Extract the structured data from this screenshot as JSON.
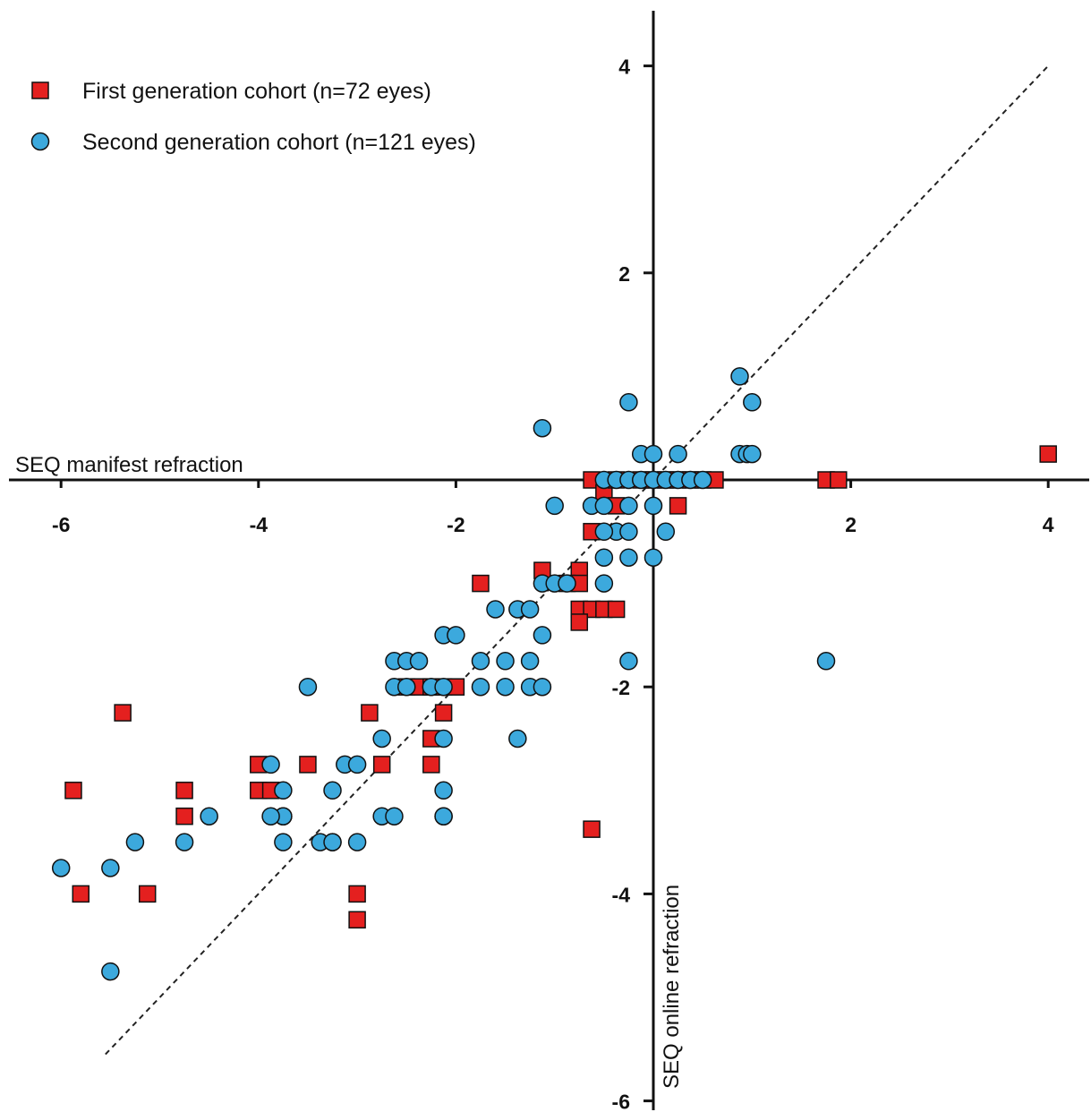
{
  "chart_data": {
    "type": "scatter",
    "title": "",
    "xlabel": "SEQ manifest refraction",
    "ylabel": "SEQ online refraction",
    "xlim": [
      -6.5,
      4.5
    ],
    "ylim": [
      -6.2,
      4.5
    ],
    "xticks": [
      -6,
      -4,
      -2,
      2,
      4
    ],
    "yticks": [
      -6,
      -4,
      -2,
      2,
      4
    ],
    "reference_line": {
      "style": "dashed",
      "x": [
        -5.55,
        4
      ],
      "y": [
        -5.55,
        4
      ]
    },
    "legend_position": "top-left",
    "grid": false,
    "colors": {
      "first": "#e4201f",
      "second": "#3ca9dd"
    },
    "series": [
      {
        "name": "First generation cohort (n=72 eyes)",
        "marker": "square",
        "x": [
          4.0,
          1.75,
          1.875,
          -0.125,
          0.0,
          0.125,
          0.25,
          0.375,
          0.5,
          0.625,
          -0.625,
          -0.5,
          -0.375,
          0.25,
          -0.375,
          -0.625,
          -1.125,
          -0.75,
          -0.875,
          -0.75,
          -1.75,
          -0.75,
          -0.625,
          -0.5,
          -0.75,
          -0.375,
          -2.5,
          -2.375,
          -2.25,
          -2.125,
          -2.0,
          -2.125,
          -2.25,
          -2.25,
          -0.625,
          -5.375,
          -5.875,
          -4.75,
          -4.75,
          -4.0,
          -4.0,
          -3.875,
          -3.5,
          -2.875,
          -2.75,
          -5.8,
          -5.125,
          -3.0,
          -3.0
        ],
        "y": [
          0.25,
          0.0,
          0.0,
          0.0,
          0.0,
          0.0,
          0.0,
          0.0,
          0.0,
          0.0,
          0.0,
          -0.125,
          0.0,
          -0.25,
          -0.25,
          -0.5,
          -0.875,
          -0.875,
          -1.0,
          -1.0,
          -1.0,
          -1.25,
          -1.25,
          -1.25,
          -1.375,
          -1.25,
          -2.0,
          -2.0,
          -2.0,
          -2.0,
          -2.0,
          -2.25,
          -2.5,
          -2.75,
          -3.375,
          -2.25,
          -3.0,
          -3.0,
          -3.25,
          -2.75,
          -3.0,
          -3.0,
          -2.75,
          -2.25,
          -2.75,
          -4.0,
          -4.0,
          -4.0,
          -4.25
        ]
      },
      {
        "name": "Second generation cohort (n=121 eyes)",
        "marker": "circle",
        "x": [
          0.875,
          1.0,
          -0.25,
          -1.125,
          -0.125,
          0.0,
          0.25,
          0.875,
          0.95,
          1.0,
          -0.5,
          -0.375,
          -0.25,
          -0.125,
          0.0,
          0.125,
          0.25,
          0.375,
          0.5,
          -1.0,
          -0.625,
          -0.5,
          -0.25,
          0.0,
          -0.375,
          -0.5,
          -0.25,
          0.125,
          -0.5,
          -0.25,
          0.0,
          -1.125,
          -1.0,
          -0.875,
          -0.5,
          -1.6,
          -1.375,
          -1.25,
          -2.125,
          -2.0,
          -1.125,
          -2.625,
          -2.5,
          -2.375,
          -1.75,
          -1.5,
          -1.25,
          -2.625,
          -2.5,
          -2.25,
          -2.125,
          -1.75,
          -1.5,
          -1.25,
          -1.125,
          -3.5,
          -0.25,
          -2.125,
          -2.75,
          -1.375,
          -3.875,
          -3.125,
          -3.0,
          -3.75,
          -3.25,
          -3.75,
          -3.75,
          -3.875,
          -4.5,
          -2.75,
          -2.625,
          -2.125,
          -3.75,
          -3.25,
          -2.125,
          -2.125,
          -5.25,
          -4.75,
          -3.375,
          -3.25,
          -3.0,
          -6.0,
          -5.5,
          -5.5,
          1.75
        ],
        "y": [
          1.0,
          0.75,
          0.75,
          0.5,
          0.25,
          0.25,
          0.25,
          0.25,
          0.25,
          0.25,
          0.0,
          0.0,
          0.0,
          0.0,
          0.0,
          0.0,
          0.0,
          0.0,
          0.0,
          -0.25,
          -0.25,
          -0.25,
          -0.25,
          -0.25,
          -0.5,
          -0.5,
          -0.5,
          -0.5,
          -0.75,
          -0.75,
          -0.75,
          -1.0,
          -1.0,
          -1.0,
          -1.0,
          -1.25,
          -1.25,
          -1.25,
          -1.5,
          -1.5,
          -1.5,
          -1.75,
          -1.75,
          -1.75,
          -1.75,
          -1.75,
          -1.75,
          -2.0,
          -2.0,
          -2.0,
          -2.0,
          -2.0,
          -2.0,
          -2.0,
          -2.0,
          -2.0,
          -1.75,
          -2.5,
          -2.5,
          -2.5,
          -2.75,
          -2.75,
          -2.75,
          -3.0,
          -3.0,
          -3.25,
          -3.25,
          -3.25,
          -3.25,
          -3.25,
          -3.25,
          -3.25,
          -3.5,
          -3.5,
          -3.0,
          -3.25,
          -3.5,
          -3.5,
          -3.5,
          -3.5,
          -3.5,
          -3.75,
          -3.75,
          -4.75,
          -1.75
        ]
      }
    ]
  }
}
